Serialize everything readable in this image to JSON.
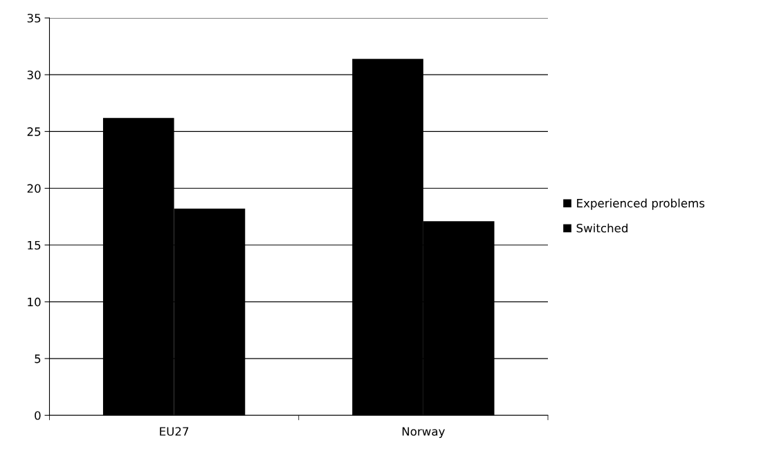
{
  "chart_data": {
    "type": "bar",
    "categories": [
      "EU27",
      "Norway"
    ],
    "series": [
      {
        "name": "Experienced problems",
        "color": "#000000",
        "values": [
          26.2,
          31.4
        ]
      },
      {
        "name": "Switched",
        "color": "#000000",
        "values": [
          18.2,
          17.1
        ]
      }
    ],
    "ylim": [
      0,
      35
    ],
    "yticks": [
      0,
      5,
      10,
      15,
      20,
      25,
      30,
      35
    ],
    "grid": "y",
    "legend": "right"
  }
}
